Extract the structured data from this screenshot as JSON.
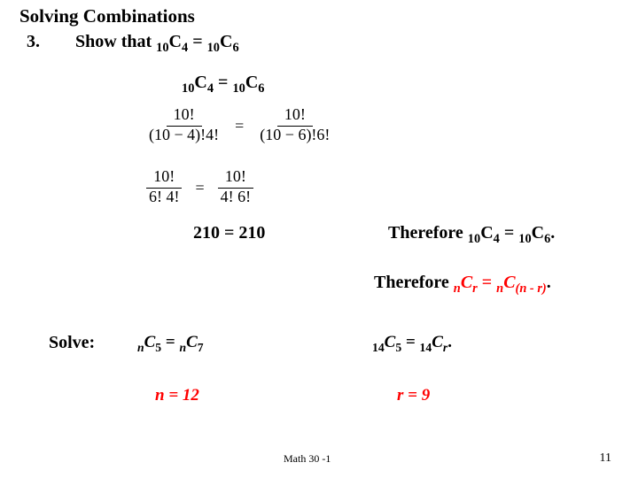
{
  "title": "Solving Combinations",
  "question_number": "3.",
  "prompt_lead": "Show that ",
  "c_expr": {
    "n1": "10",
    "k1": "4",
    "n2": "10",
    "k2": "6"
  },
  "fractions": {
    "row1": {
      "lnum": "10!",
      "lden": "(10 − 4)!4!",
      "rnum": "10!",
      "rden": "(10 − 6)!6!"
    },
    "row2": {
      "lnum": "10!",
      "lden": "6! 4!",
      "rnum": "10!",
      "rden": "4! 6!"
    }
  },
  "result": {
    "lhs": "210",
    "rhs": "210"
  },
  "therefore1_lead": "Therefore ",
  "therefore2_lead": "Therefore  ",
  "general": {
    "n": "n",
    "r": "r",
    "nr": "(n - r)"
  },
  "solve": {
    "label": "Solve:",
    "eq1": {
      "n1": "n",
      "k1": "5",
      "n2": "n",
      "k2": "7"
    },
    "eq2": {
      "n1": "14",
      "k1": "5",
      "n2": "14",
      "k2": "r"
    },
    "ans1_lhs": "n",
    "ans1_rhs": "12",
    "ans2_lhs": "r",
    "ans2_rhs": "9"
  },
  "footer": "Math 30 -1",
  "page": "11",
  "colors": {
    "accent": "#ff0000",
    "text": "#000000",
    "bg": "#ffffff"
  },
  "fonts": {
    "base": "Georgia, Times New Roman, serif",
    "title_size": 21,
    "body_size": 20,
    "footer_size": 12
  }
}
